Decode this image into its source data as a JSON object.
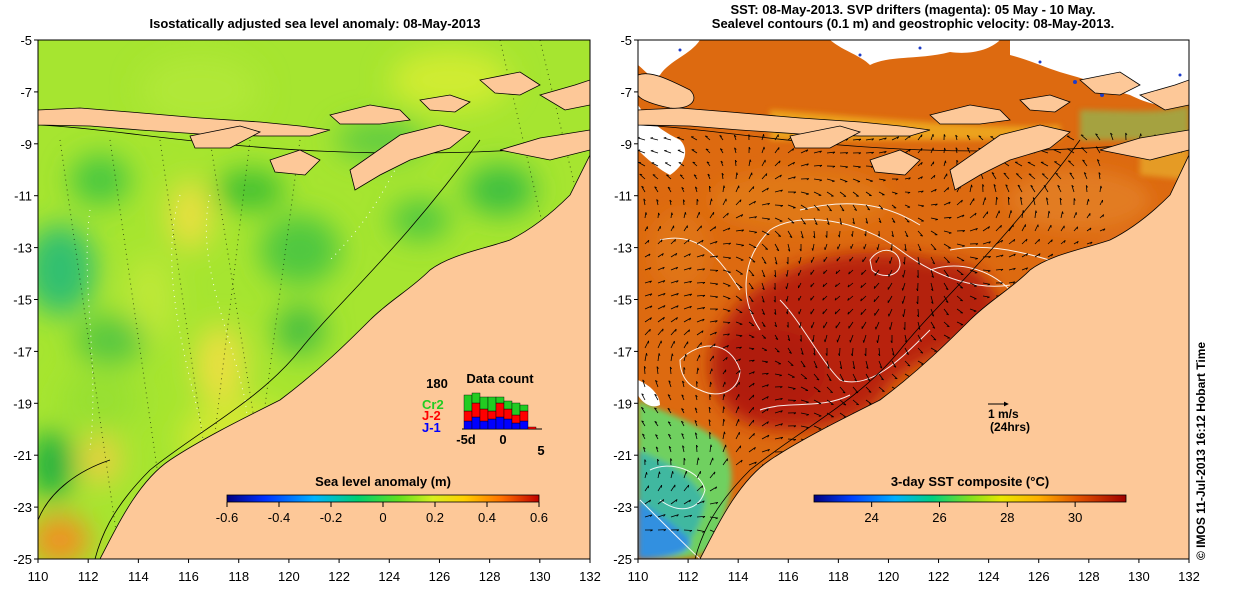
{
  "left_map": {
    "title": "Isostatically adjusted sea level anomaly: 08-May-2013",
    "colorbar": {
      "label": "Sea level anomaly (m)",
      "ticks": [
        "-0.6",
        "-0.4",
        "-0.2",
        "0",
        "0.2",
        "0.4",
        "0.6"
      ],
      "range": [
        -0.6,
        0.6
      ]
    },
    "data_count": {
      "title": "Data count",
      "y_label": "180",
      "legend": [
        {
          "name": "Cr2",
          "color": "#22cc22"
        },
        {
          "name": "J-2",
          "color": "#ff0000"
        },
        {
          "name": "J-1",
          "color": "#0000ff"
        }
      ],
      "x_labels": [
        "-5d",
        "0",
        "5"
      ]
    }
  },
  "right_map": {
    "title_lines": [
      "SST: 08-May-2013. SVP drifters (magenta): 05 May - 10 May.",
      "Sealevel contours (0.1 m) and geostrophic velocity: 08-May-2013."
    ],
    "colorbar": {
      "label": "3-day SST composite (°C)",
      "ticks": [
        "24",
        "26",
        "28",
        "30"
      ],
      "range": [
        22.3,
        31.5
      ]
    },
    "velocity_scale": {
      "label": "1 m/s",
      "sublabel": "(24hrs)"
    }
  },
  "axes": {
    "lon_ticks": [
      "110",
      "112",
      "114",
      "116",
      "118",
      "120",
      "122",
      "124",
      "126",
      "128",
      "130",
      "132"
    ],
    "lat_ticks": [
      "-5",
      "-7",
      "-9",
      "-11",
      "-13",
      "-15",
      "-17",
      "-19",
      "-21",
      "-23",
      "-25"
    ],
    "lon_range": [
      110,
      132
    ],
    "lat_range": [
      -25,
      -5
    ]
  },
  "credit": "© IMOS 11-Jul-2013 16:12 Hobart Time",
  "colors": {
    "land": "#fdc898",
    "sla_base": "#a0e62a",
    "sst_base": "#dd6a10"
  }
}
